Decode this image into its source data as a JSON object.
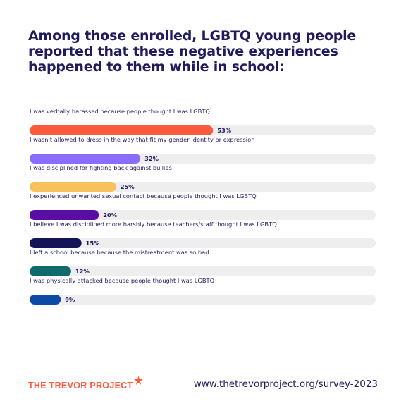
{
  "title": "Among those enrolled, LGBTQ young people reported that these negative experiences happened to them while in school:",
  "chart_data": {
    "type": "bar",
    "orientation": "horizontal",
    "title": "Among those enrolled, LGBTQ young people reported that these negative experiences happened to them while in school:",
    "xlim": [
      0,
      100
    ],
    "unit": "%",
    "track_color": "#eeeeee",
    "categories": [
      "I was verbally harassed because people thought I was LGBTQ",
      "I wasn't allowed to dress in the way that fit my gender identity or expression",
      "I was disciplined for fighting back against bullies",
      "I experienced unwanted sexual contact because people thought I was LGBTQ",
      "I believe I was disciplined more harshly because teachers/staff thought I was LGBTQ",
      "I left a school because because the mistreatment was so bad",
      "I was physically attacked because people thought I was LGBTQ"
    ],
    "values": [
      53,
      32,
      25,
      20,
      15,
      12,
      9
    ],
    "value_labels": [
      "53%",
      "32%",
      "25%",
      "20%",
      "15%",
      "12%",
      "9%"
    ],
    "colors": [
      "#ff5a3c",
      "#8a6cff",
      "#f7c15b",
      "#5b0ca3",
      "#141458",
      "#0f6b6b",
      "#0c4aa6"
    ]
  },
  "footer": {
    "brand": "THE TREVOR PROJECT",
    "url": "www.thetrevorproject.org/survey-2023"
  }
}
